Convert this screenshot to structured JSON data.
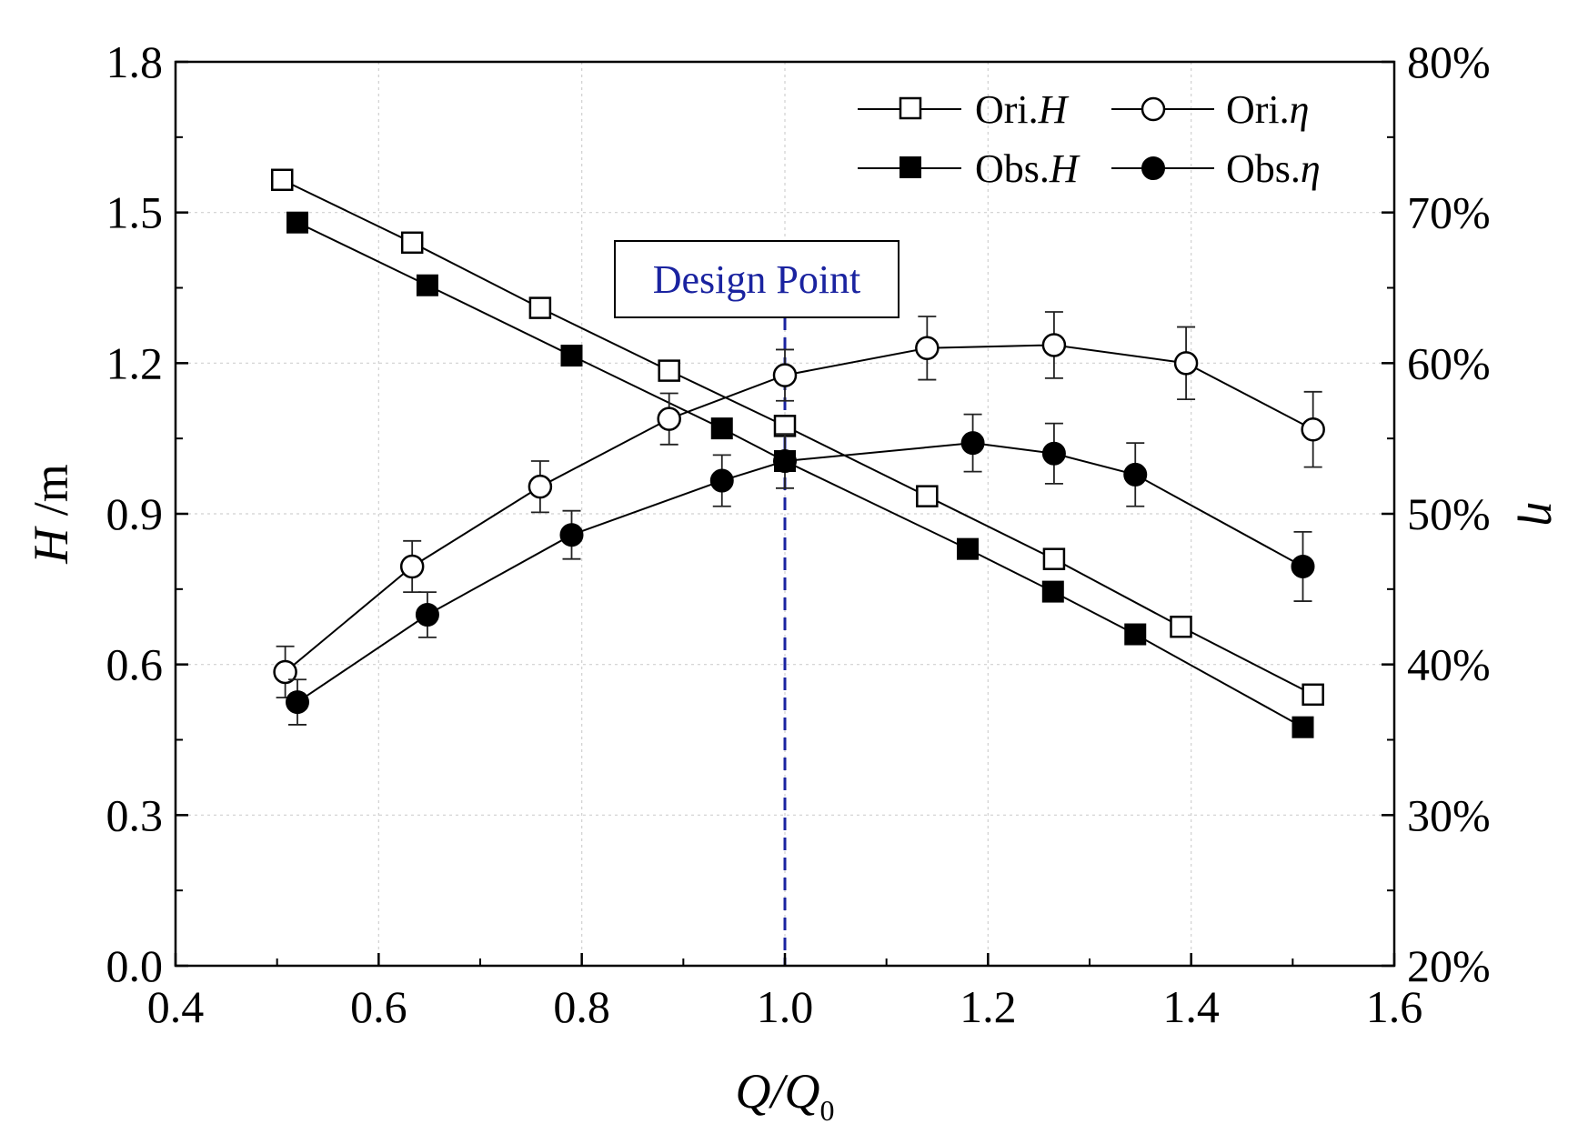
{
  "chart_data": {
    "type": "line",
    "title": "",
    "xlabel": {
      "main": "Q/Q",
      "sub": "0"
    },
    "ylabel_left": {
      "main": "H",
      "unit": " /m"
    },
    "ylabel_right": "η",
    "xlim": [
      0.4,
      1.6
    ],
    "ylim_left": [
      0.0,
      1.8
    ],
    "ylim_right": [
      20,
      80
    ],
    "x_ticks": [
      "0.4",
      "0.6",
      "0.8",
      "1.0",
      "1.2",
      "1.4",
      "1.6"
    ],
    "y_left_ticks": [
      "0.0",
      "0.3",
      "0.6",
      "0.9",
      "1.2",
      "1.5",
      "1.8"
    ],
    "y_right_ticks": [
      "20%",
      "30%",
      "40%",
      "50%",
      "60%",
      "70%",
      "80%"
    ],
    "grid": true,
    "legend_position": "top-right",
    "series": [
      {
        "name": "Ori.",
        "var": "H",
        "axis": "left",
        "marker": "open-square",
        "x": [
          0.505,
          0.633,
          0.759,
          0.886,
          1.0,
          1.14,
          1.265,
          1.39,
          1.52
        ],
        "y": [
          1.565,
          1.44,
          1.31,
          1.185,
          1.075,
          0.935,
          0.81,
          0.675,
          0.54
        ],
        "err": []
      },
      {
        "name": "Obs.",
        "var": "H",
        "axis": "left",
        "marker": "filled-square",
        "x": [
          0.52,
          0.648,
          0.79,
          0.938,
          1.0,
          1.18,
          1.264,
          1.345,
          1.51
        ],
        "y": [
          1.48,
          1.355,
          1.215,
          1.07,
          1.005,
          0.83,
          0.745,
          0.66,
          0.475
        ],
        "err": []
      },
      {
        "name": "Ori.",
        "var": "η",
        "axis": "right",
        "marker": "open-circle",
        "x": [
          0.508,
          0.633,
          0.759,
          0.886,
          1.0,
          1.14,
          1.265,
          1.395,
          1.52
        ],
        "y": [
          39.5,
          46.5,
          51.8,
          56.3,
          59.2,
          61.0,
          61.2,
          60.0,
          55.6
        ],
        "err": [
          1.7,
          1.7,
          1.7,
          1.7,
          1.7,
          2.1,
          2.2,
          2.4,
          2.5
        ]
      },
      {
        "name": "Obs.",
        "var": "η",
        "axis": "right",
        "marker": "filled-circle",
        "x": [
          0.52,
          0.648,
          0.79,
          0.938,
          1.0,
          1.185,
          1.265,
          1.345,
          1.51
        ],
        "y": [
          37.5,
          43.3,
          48.6,
          52.2,
          53.5,
          54.7,
          54.0,
          52.6,
          46.5
        ],
        "err": [
          1.5,
          1.5,
          1.6,
          1.7,
          1.8,
          1.9,
          2.0,
          2.1,
          2.3
        ]
      }
    ],
    "annotation": {
      "label": "Design Point",
      "x": 1.0,
      "color": "#1a23a0"
    }
  }
}
